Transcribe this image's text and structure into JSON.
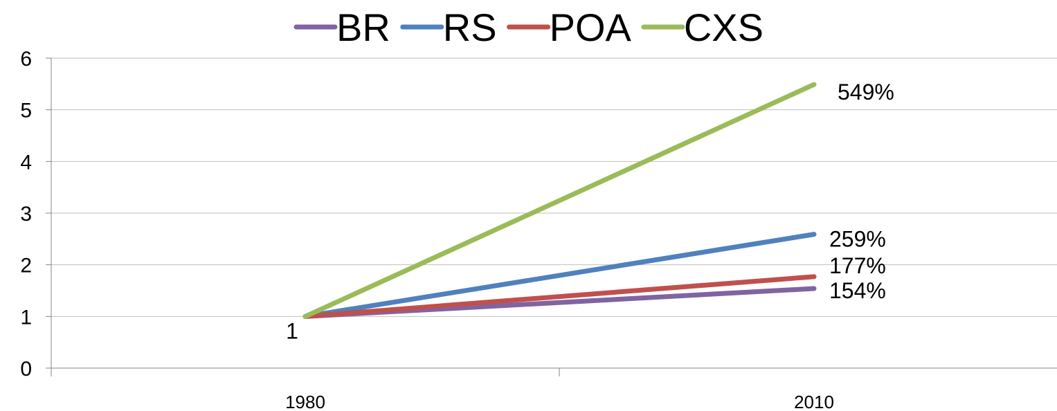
{
  "chart_data": {
    "type": "line",
    "categories": [
      "1980",
      "2010"
    ],
    "series": [
      {
        "name": "BR",
        "color": "#8064A2",
        "values": [
          1,
          1.54
        ]
      },
      {
        "name": "RS",
        "color": "#4F81BD",
        "values": [
          1,
          2.59
        ]
      },
      {
        "name": "POA",
        "color": "#C0504D",
        "values": [
          1,
          1.77
        ]
      },
      {
        "name": "CXS",
        "color": "#9BBB59",
        "values": [
          1,
          5.49
        ]
      }
    ],
    "data_labels": [
      {
        "text": "1",
        "series": "CXS",
        "index": 0
      },
      {
        "text": "549%",
        "series": "CXS",
        "index": 1
      },
      {
        "text": "259%",
        "series": "RS",
        "index": 1
      },
      {
        "text": "177%",
        "series": "POA",
        "index": 1
      },
      {
        "text": "154%",
        "series": "BR",
        "index": 1
      }
    ],
    "yticks": [
      "0",
      "1",
      "2",
      "3",
      "4",
      "5",
      "6"
    ],
    "ylim": [
      0,
      6
    ],
    "grid": true,
    "legend_position": "top"
  }
}
